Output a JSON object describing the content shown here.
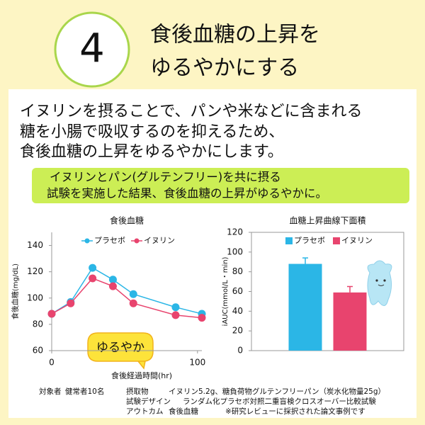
{
  "header": {
    "number": "4",
    "title": [
      "食後血糖の上昇を",
      "ゆるやかにする"
    ]
  },
  "body": [
    "イヌリンを摂ることで、パンや米などに含まれる",
    "糖を小腸で吸収するのを抑えるため、",
    "食後血糖の上昇をゆるやかにします。"
  ],
  "callout": [
    "イヌリンとパン(グルテンフリー)を共に摂る",
    "試験を実施した結果、食後血糖の上昇がゆるやかに。"
  ],
  "badge": "ゆるやか",
  "chart_data": [
    {
      "type": "line",
      "title": "食後血糖",
      "x_label": "食後経過時間(hr)",
      "y_label": "食後血糖(mg/dL)",
      "x": [
        0,
        13,
        28,
        42,
        56,
        85,
        103
      ],
      "xlim": [
        0,
        103
      ],
      "xticks": [
        0,
        100
      ],
      "ylim": [
        60,
        150
      ],
      "yticks": [
        60,
        80,
        100,
        120,
        140
      ],
      "series": [
        {
          "name": "プラセボ",
          "color": "#2bb6e6",
          "values": [
            88,
            97,
            123,
            114,
            103,
            93,
            88
          ]
        },
        {
          "name": "イヌリン",
          "color": "#e8446e",
          "values": [
            88,
            96,
            115,
            109,
            96,
            87,
            85
          ]
        }
      ]
    },
    {
      "type": "bar",
      "title": "血糖上昇曲線下面積",
      "y_label": "iAUC(mmol/L・min)",
      "categories": [
        null
      ],
      "ylim": [
        0,
        120
      ],
      "yticks": [
        0,
        20,
        40,
        60,
        80,
        100,
        120
      ],
      "series": [
        {
          "name": "プラセボ",
          "color": "#2bb6e6",
          "values": [
            88
          ],
          "errors": [
            6
          ]
        },
        {
          "name": "イヌリン",
          "color": "#e8446e",
          "values": [
            59
          ],
          "errors": [
            6
          ]
        }
      ]
    }
  ],
  "footnote": {
    "subject_label": "対象者",
    "subject": "健常者10名",
    "intake_label": "摂取物",
    "intake": "イヌリン5.2g、糖負荷物グルテンフリーパン（炭水化物量25g）",
    "design_label": "試験デザイン",
    "design": "ランダム化プラセボ対照二重盲検クロスオーバー比較試験",
    "outcome_label": "アウトカム",
    "outcome": "食後血糖",
    "note": "※研究レビューに採択された論文事例です"
  }
}
